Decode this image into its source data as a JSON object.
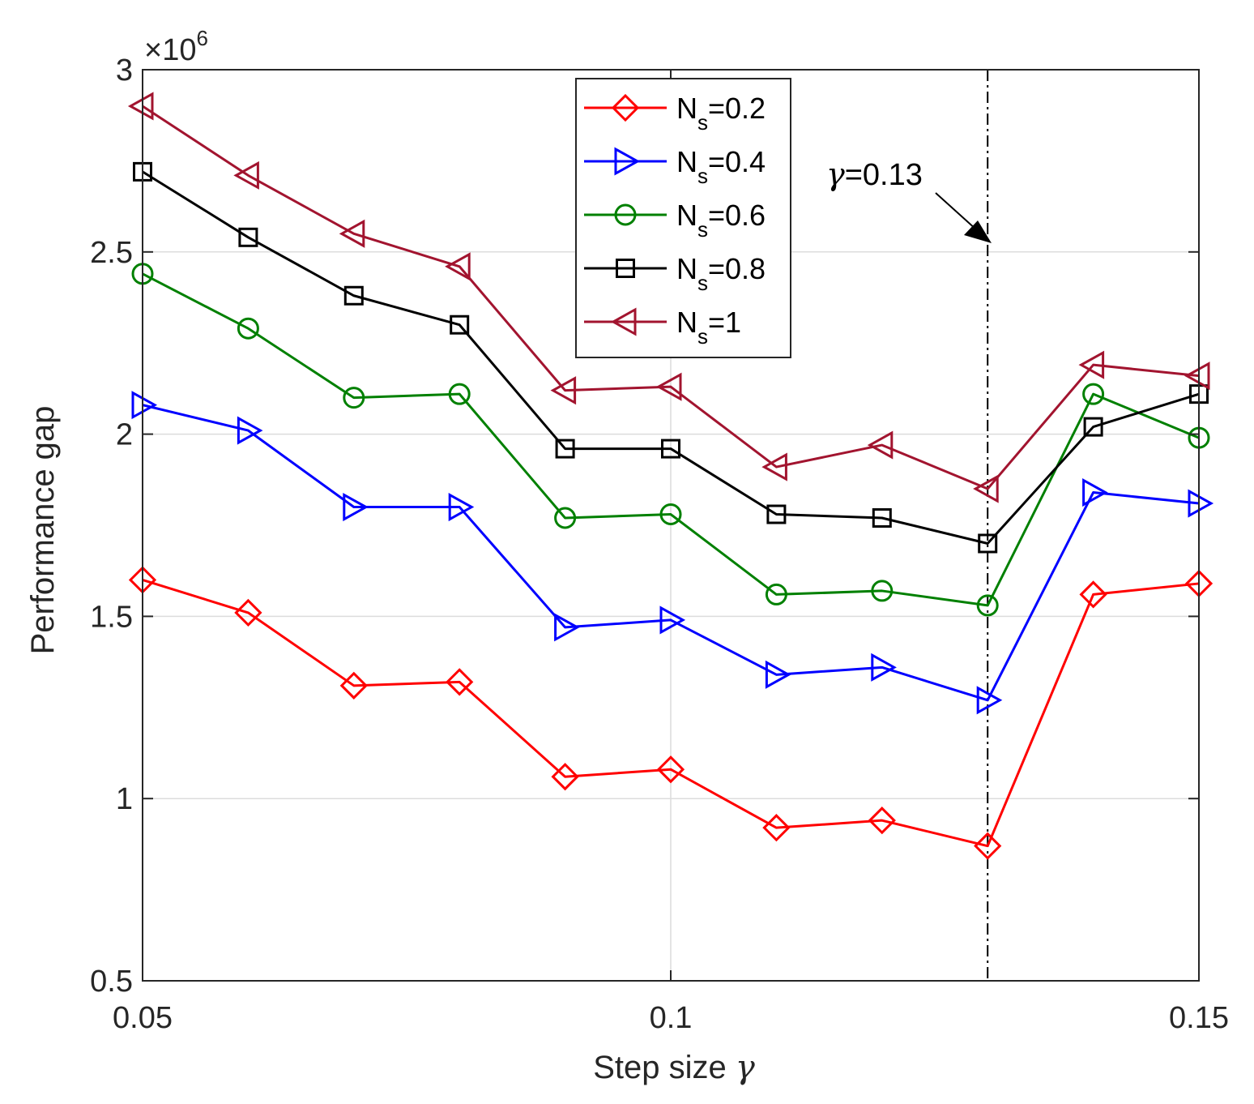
{
  "chart_data": {
    "type": "line",
    "xlabel_prefix": "Step size",
    "xlabel_symbol": "γ",
    "ylabel": "Performance gap",
    "xlim": [
      0.05,
      0.15
    ],
    "ylim": [
      0.5,
      3
    ],
    "y_scale_label": "×10",
    "y_scale_exponent": "6",
    "grid": true,
    "legend_position": "top-center",
    "x": [
      0.05,
      0.06,
      0.07,
      0.08,
      0.09,
      0.1,
      0.11,
      0.12,
      0.13,
      0.14,
      0.15
    ],
    "x_ticks": [
      0.05,
      0.1,
      0.15
    ],
    "x_tick_labels": [
      "0.05",
      "0.1",
      "0.15"
    ],
    "y_ticks": [
      0.5,
      1,
      1.5,
      2,
      2.5,
      3
    ],
    "y_tick_labels": [
      "0.5",
      "1",
      "1.5",
      "2",
      "2.5",
      "3"
    ],
    "series": [
      {
        "name_main": "N",
        "name_sub": "s",
        "name_value": "=0.2",
        "color": "#ff0000",
        "marker": "diamond",
        "values": [
          1.6,
          1.51,
          1.31,
          1.32,
          1.06,
          1.08,
          0.92,
          0.94,
          0.87,
          1.56,
          1.59
        ]
      },
      {
        "name_main": "N",
        "name_sub": "s",
        "name_value": "=0.4",
        "color": "#0000ff",
        "marker": "triangle-right",
        "values": [
          2.08,
          2.01,
          1.8,
          1.8,
          1.47,
          1.49,
          1.34,
          1.36,
          1.27,
          1.84,
          1.81
        ]
      },
      {
        "name_main": "N",
        "name_sub": "s",
        "name_value": "=0.6",
        "color": "#008000",
        "marker": "circle",
        "values": [
          2.44,
          2.29,
          2.1,
          2.11,
          1.77,
          1.78,
          1.56,
          1.57,
          1.53,
          2.11,
          1.99
        ]
      },
      {
        "name_main": "N",
        "name_sub": "s",
        "name_value": "=0.8",
        "color": "#000000",
        "marker": "square",
        "values": [
          2.72,
          2.54,
          2.38,
          2.3,
          1.96,
          1.96,
          1.78,
          1.77,
          1.7,
          2.02,
          2.11
        ]
      },
      {
        "name_main": "N",
        "name_sub": "s",
        "name_value": "=1",
        "color": "#a2142f",
        "marker": "triangle-left",
        "values": [
          2.9,
          2.71,
          2.55,
          2.46,
          2.12,
          2.13,
          1.91,
          1.97,
          1.85,
          2.19,
          2.16
        ]
      }
    ],
    "annotation": {
      "symbol": "γ",
      "value_text": "=0.13",
      "x_value": 0.13
    }
  }
}
